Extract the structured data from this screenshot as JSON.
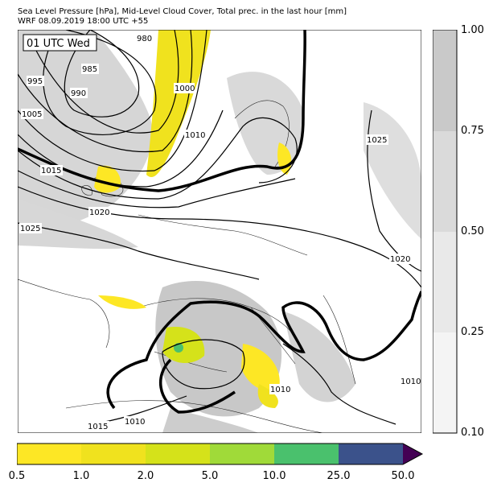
{
  "title_line1": "Sea Level Pressure [hPa], Mid-Level Cloud Cover, Total prec. in the last hour [mm]",
  "title_line2": "WRF 08.09.2019 18:00 UTC +55",
  "time_label": "01 UTC Wed",
  "isobar_labels": [
    "980",
    "985",
    "990",
    "995",
    "1000",
    "1005",
    "1010",
    "1015",
    "1020",
    "1025",
    "1020",
    "1025",
    "1010",
    "1015",
    "1010",
    "1010"
  ],
  "cloud_colorbar": {
    "labels": [
      "1.00",
      "0.75",
      "0.50",
      "0.25",
      "0.10"
    ],
    "colors": [
      "#c9c9c9",
      "#dadada",
      "#e9e9e9",
      "#f4f4f4"
    ]
  },
  "precip_colorbar": {
    "labels": [
      "0.5",
      "1.0",
      "2.0",
      "5.0",
      "10.0",
      "25.0",
      "50.0"
    ],
    "colors": [
      "#fde725",
      "#f0e21e",
      "#d5e21a",
      "#a0da39",
      "#4ac16d",
      "#2eb37c",
      "#3b528b",
      "#440154"
    ]
  }
}
